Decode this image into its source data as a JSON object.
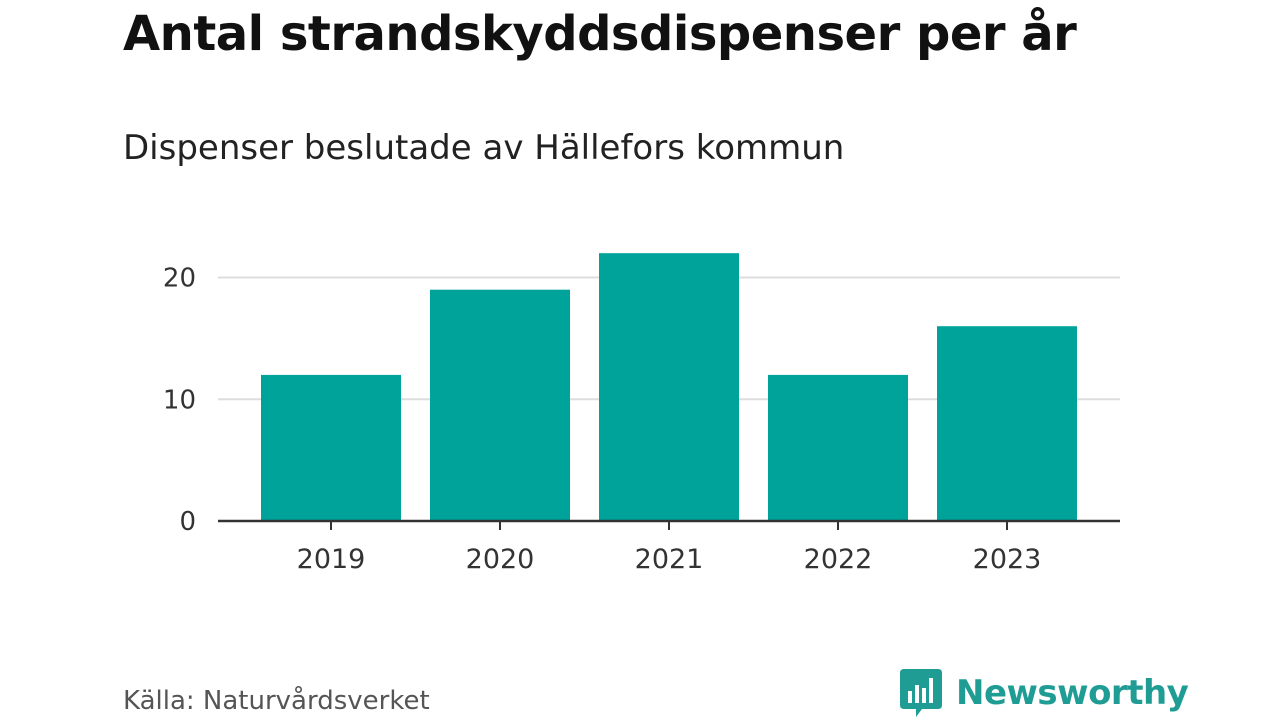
{
  "header": {
    "title": "Antal strandskyddsdispenser per år",
    "subtitle": "Dispenser beslutade av Hällefors kommun"
  },
  "footer": {
    "source": "Källa: Naturvårdsverket",
    "brand": "Newsworthy"
  },
  "colors": {
    "bar": "#00a39a",
    "grid": "#dddddd",
    "axis": "#333333",
    "tick_text": "#333333",
    "brand": "#1f9c93"
  },
  "chart_data": {
    "type": "bar",
    "title": "Antal strandskyddsdispenser per år",
    "subtitle": "Dispenser beslutade av Hällefors kommun",
    "categories": [
      "2019",
      "2020",
      "2021",
      "2022",
      "2023"
    ],
    "values": [
      12,
      19,
      22,
      12,
      16
    ],
    "xlabel": "",
    "ylabel": "",
    "ylim": [
      0,
      23
    ],
    "yticks": [
      0,
      10,
      20
    ],
    "grid": true,
    "legend": "none"
  }
}
